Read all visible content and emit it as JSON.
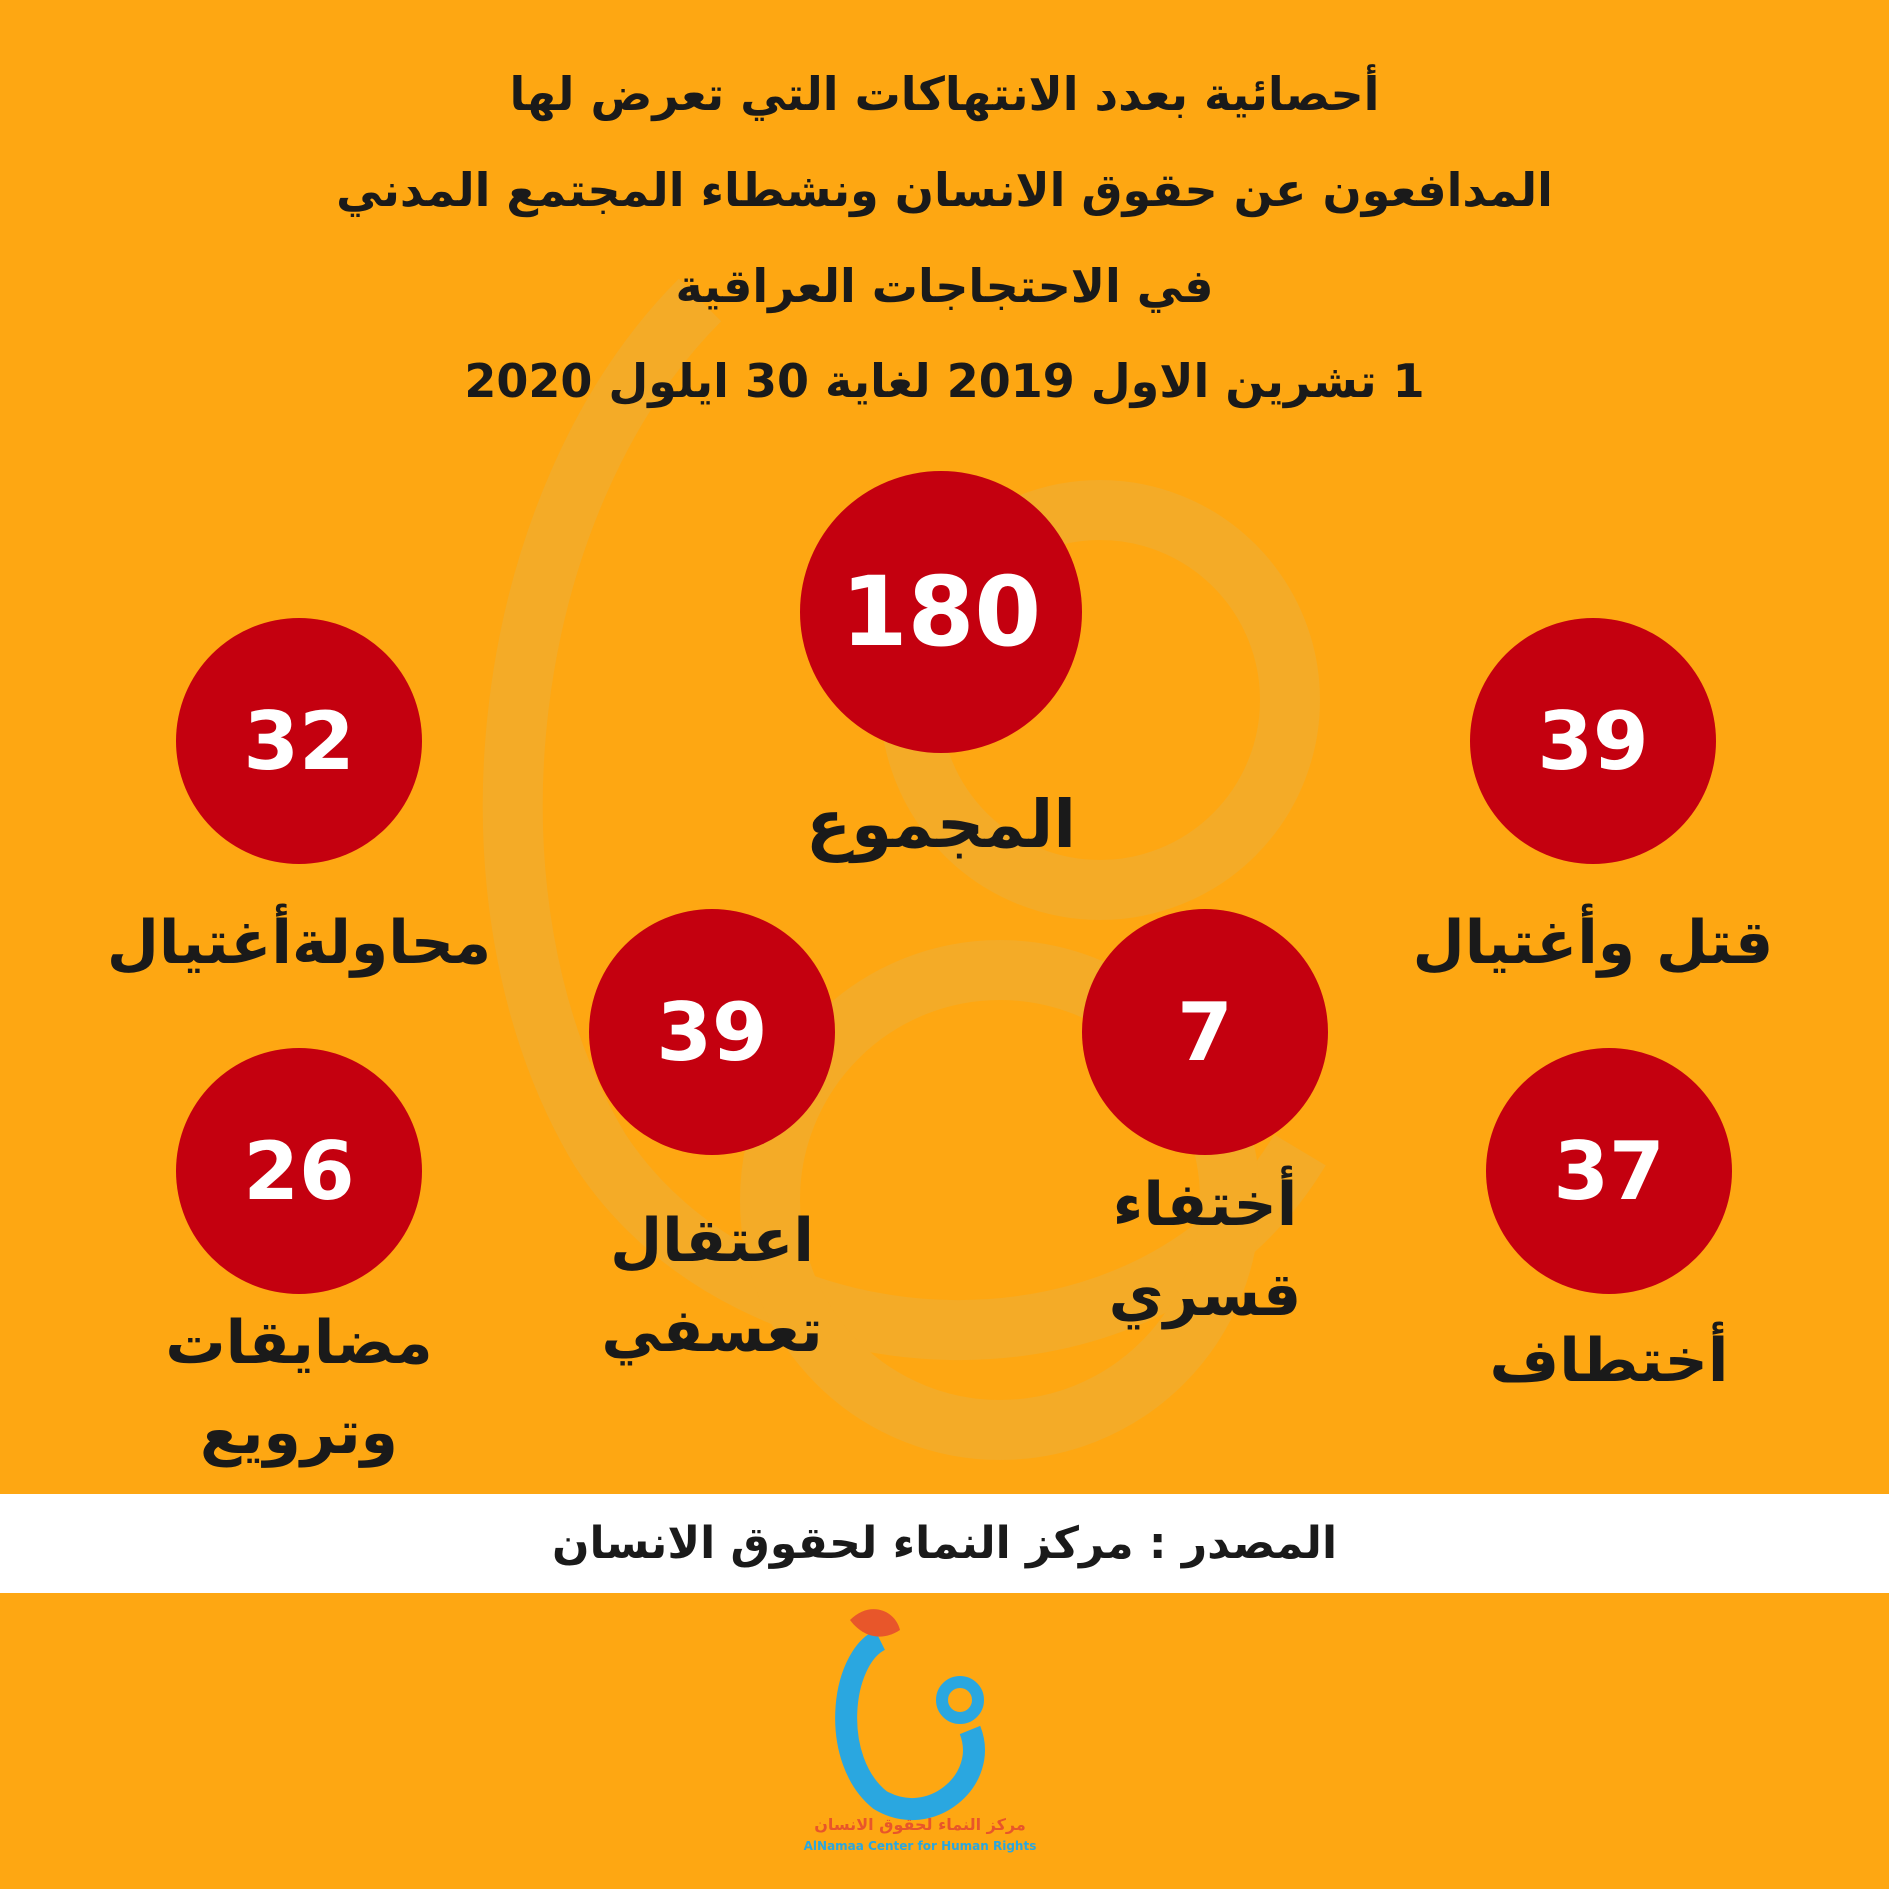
{
  "title": {
    "lines": [
      "أحصائية بعدد الانتهاكات التي تعرض لها",
      "المدافعون عن حقوق الانسان ونشطاء المجتمع المدني",
      "في الاحتجاجات العراقية",
      "1 تشرين الاول 2019  لغاية 30 ايلول 2020"
    ]
  },
  "stats": [
    {
      "value": 180,
      "label": [
        "المجموع"
      ]
    },
    {
      "value": 32,
      "label": [
        "محاولةأغتيال"
      ]
    },
    {
      "value": 39,
      "label": [
        "قتل وأغتيال"
      ]
    },
    {
      "value": 39,
      "label": [
        "اعتقال",
        "تعسفي"
      ]
    },
    {
      "value": 7,
      "label": [
        "أختفاء",
        "قسري"
      ]
    },
    {
      "value": 26,
      "label": [
        "مضايقات",
        "وترويع"
      ]
    },
    {
      "value": 37,
      "label": [
        "أختطاف"
      ]
    }
  ],
  "source": "المصدر : مركز النماء لحقوق الانسان",
  "logo": {
    "name_ar": "مركز النماء لحقوق الانسان",
    "name_en": "AlNamaa Center for Human Rights"
  }
}
